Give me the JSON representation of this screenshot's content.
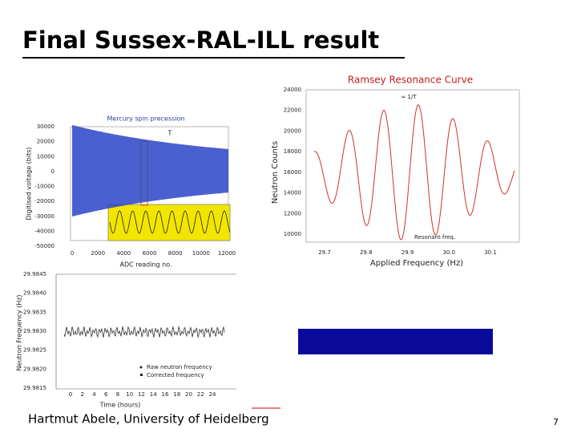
{
  "header": {
    "title": "Final Sussex-RAL-ILL result"
  },
  "figures": {
    "mercury": {
      "title": "Mercury spin precession",
      "ylabel": "Digitised voltage (bits)",
      "xlabel": "ADC reading no.",
      "annotation": "T",
      "yticks": [
        "30000",
        "20000",
        "10000",
        "0",
        "-10000",
        "-20000",
        "-30000",
        "-40000",
        "-50000"
      ],
      "xticks": [
        "0",
        "2000",
        "4000",
        "6000",
        "8000",
        "10000",
        "12000"
      ]
    },
    "ramsey": {
      "title": "Ramsey Resonance Curve",
      "ylabel": "Neutron Counts",
      "xlabel": "Applied Frequency (Hz)",
      "annotations": [
        "≈ 1/T",
        "Resonant freq."
      ],
      "yticks": [
        "24000",
        "22000",
        "20000",
        "18000",
        "16000",
        "14000",
        "12000",
        "10000"
      ],
      "xticks": [
        "29.7",
        "29.8",
        "29.9",
        "30.0",
        "30.1"
      ]
    },
    "drift": {
      "ylabel": "Neutron Frequency (Hz)",
      "xlabel": "Time (hours)",
      "yticks": [
        "29.9845",
        "29.9840",
        "29.9835",
        "29.9830",
        "29.9825",
        "29.9820",
        "29.9815"
      ],
      "xticks": [
        "0",
        "2",
        "4",
        "6",
        "8",
        "10",
        "12",
        "14",
        "16",
        "18",
        "20",
        "22",
        "24"
      ],
      "legend": [
        "Raw neutron frequency",
        "Corrected frequency"
      ]
    }
  },
  "footer": {
    "author": "Hartmut Abele, University of Heidelberg",
    "page": "7"
  }
}
